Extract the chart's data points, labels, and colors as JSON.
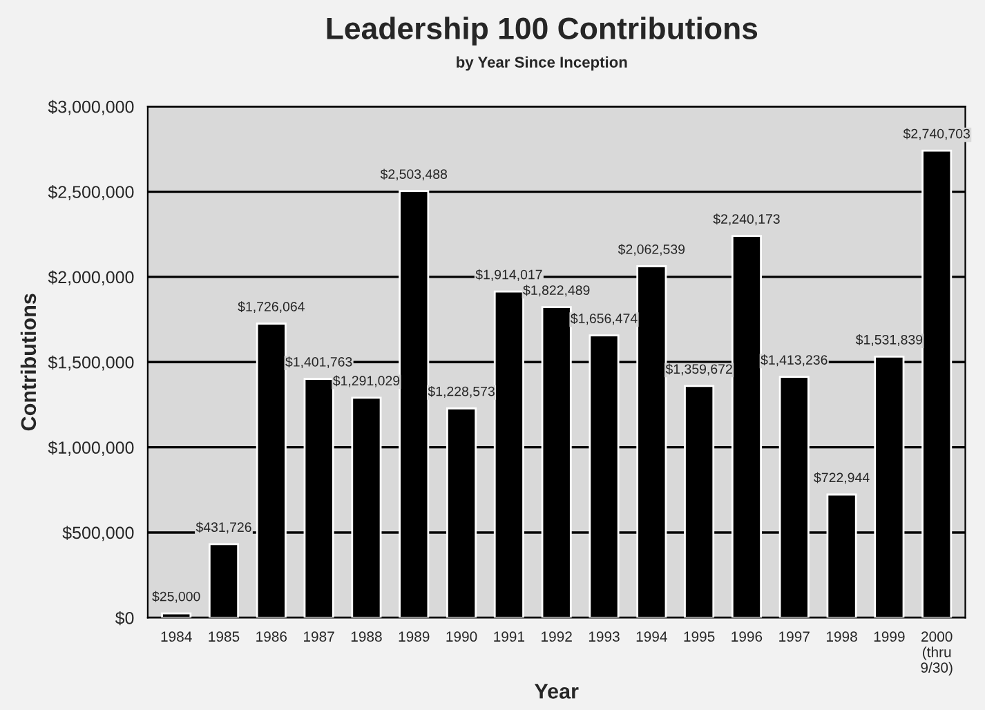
{
  "chart_data": {
    "type": "bar",
    "title": "Leadership 100 Contributions",
    "subtitle": "by Year Since Inception",
    "xlabel": "Year",
    "ylabel": "Contributions",
    "categories": [
      "1984",
      "1985",
      "1986",
      "1987",
      "1988",
      "1989",
      "1990",
      "1991",
      "1992",
      "1993",
      "1994",
      "1995",
      "1996",
      "1997",
      "1998",
      "1999",
      "2000\n(thru\n9/30)"
    ],
    "values": [
      25000,
      431726,
      1726064,
      1401763,
      1291029,
      2503488,
      1228573,
      1914017,
      1822489,
      1656474,
      2062539,
      1359672,
      2240173,
      1413236,
      722944,
      1531839,
      2740703
    ],
    "value_labels": [
      "$25,000",
      "$431,726",
      "$1,726,064",
      "$1,401,763",
      "$1,291,029",
      "$2,503,488",
      "$1,228,573",
      "$1,914,017",
      "$1,822,489",
      "$1,656,474",
      "$2,062,539",
      "$1,359,672",
      "$2,240,173",
      "$1,413,236",
      "$722,944",
      "$1,531,839",
      "$2,740,703"
    ],
    "color": "#000000",
    "ylim": [
      0,
      3000000
    ],
    "yticks": [
      {
        "value": 0,
        "label": "$0"
      },
      {
        "value": 500000,
        "label": "$500,000"
      },
      {
        "value": 1000000,
        "label": "$1,000,000"
      },
      {
        "value": 1500000,
        "label": "$1,500,000"
      },
      {
        "value": 2000000,
        "label": "$2,000,000"
      },
      {
        "value": 2500000,
        "label": "$2,500,000"
      },
      {
        "value": 3000000,
        "label": "$3,000,000"
      }
    ],
    "grid": "y"
  }
}
